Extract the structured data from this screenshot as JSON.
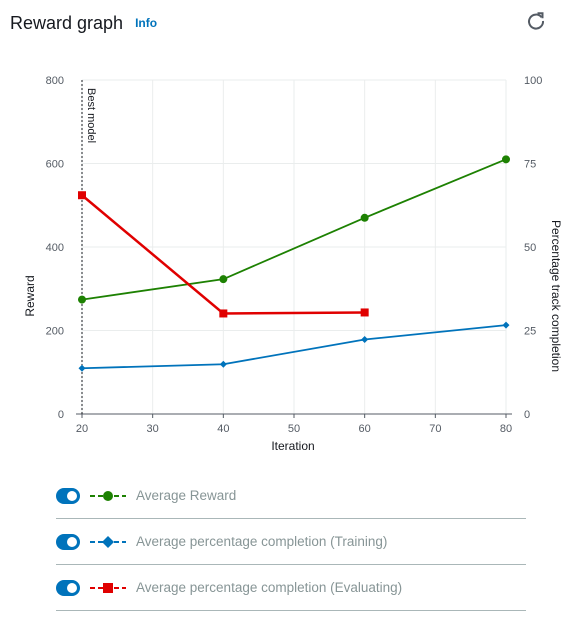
{
  "header": {
    "title": "Reward graph",
    "info": "Info",
    "refresh_icon": "refresh-icon"
  },
  "colors": {
    "reward": "#1d8102",
    "training": "#0073bb",
    "evaluating": "#e00000",
    "grid": "#eaeded",
    "axis": "#545b64"
  },
  "chart_data": {
    "type": "line",
    "xlabel": "Iteration",
    "ylabel": "Reward",
    "y2label": "Percentage track completion",
    "xlim": [
      20,
      80
    ],
    "ylim": [
      0,
      800
    ],
    "y2lim": [
      0,
      100
    ],
    "xticks": [
      20,
      30,
      40,
      50,
      60,
      70,
      80
    ],
    "yticks": [
      0,
      200,
      400,
      600,
      800
    ],
    "y2ticks": [
      0,
      25,
      50,
      75,
      100
    ],
    "grid": true,
    "annotation": {
      "label": "Best model",
      "x": 20
    },
    "series": [
      {
        "name": "Average Reward",
        "axis": "left",
        "marker": "circle",
        "color": "#1d8102",
        "x": [
          20,
          40,
          60,
          80
        ],
        "values": [
          274,
          323,
          470,
          610
        ]
      },
      {
        "name": "Average percentage completion (Training)",
        "axis": "right",
        "marker": "diamond",
        "color": "#0073bb",
        "x": [
          20,
          40,
          60,
          80
        ],
        "values": [
          13.7,
          14.9,
          22.3,
          26.6
        ]
      },
      {
        "name": "Average percentage completion (Evaluating)",
        "axis": "right",
        "marker": "square",
        "color": "#e00000",
        "x": [
          20,
          40,
          60
        ],
        "values": [
          65.5,
          30.1,
          30.4
        ]
      }
    ]
  },
  "legend": [
    {
      "label": "Average Reward",
      "enabled": true
    },
    {
      "label": "Average percentage completion (Training)",
      "enabled": true
    },
    {
      "label": "Average percentage completion (Evaluating)",
      "enabled": true
    }
  ]
}
